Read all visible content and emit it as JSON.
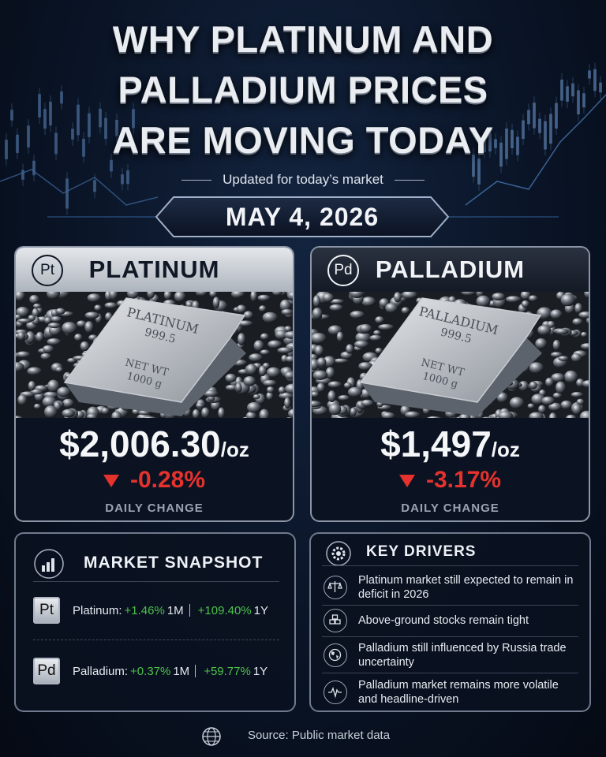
{
  "header": {
    "title_lines": [
      "WHY PLATINUM AND",
      "PALLADIUM PRICES",
      "ARE MOVING TODAY"
    ],
    "subtitle": "Updated for today’s market",
    "date": "MAY 4, 2026"
  },
  "cards": [
    {
      "symbol": "Pt",
      "name": "PLATINUM",
      "bar_lines": [
        "PLATINUM",
        "999.5",
        "NET WT",
        "1000 g"
      ],
      "price": "$2,006.30",
      "unit": "/oz",
      "change": "-0.28%",
      "change_label": "DAILY CHANGE"
    },
    {
      "symbol": "Pd",
      "name": "PALLADIUM",
      "bar_lines": [
        "PALLADIUM",
        "999.5",
        "NET WT",
        "1000 g"
      ],
      "price": "$1,497",
      "unit": "/oz",
      "change": "-3.17%",
      "change_label": "DAILY CHANGE"
    }
  ],
  "snapshot": {
    "title": "MARKET SNAPSHOT",
    "rows": [
      {
        "symbol": "Pt",
        "name": "Platinum:",
        "m1": "+1.46%",
        "m1_label": "1M",
        "y1": "+109.40%",
        "y1_label": "1Y"
      },
      {
        "symbol": "Pd",
        "name": "Palladium:",
        "m1": "+0.37%",
        "m1_label": "1M",
        "y1": "+59.77%",
        "y1_label": "1Y"
      }
    ]
  },
  "drivers": {
    "title": "KEY DRIVERS",
    "items": [
      "Platinum market still expected to remain in deficit in 2026",
      "Above-ground stocks remain tight",
      "Palladium still influenced by Russia trade uncertainty",
      "Palladium market remains more volatile and headline-driven"
    ]
  },
  "footer": {
    "source": "Source: Public market data"
  }
}
